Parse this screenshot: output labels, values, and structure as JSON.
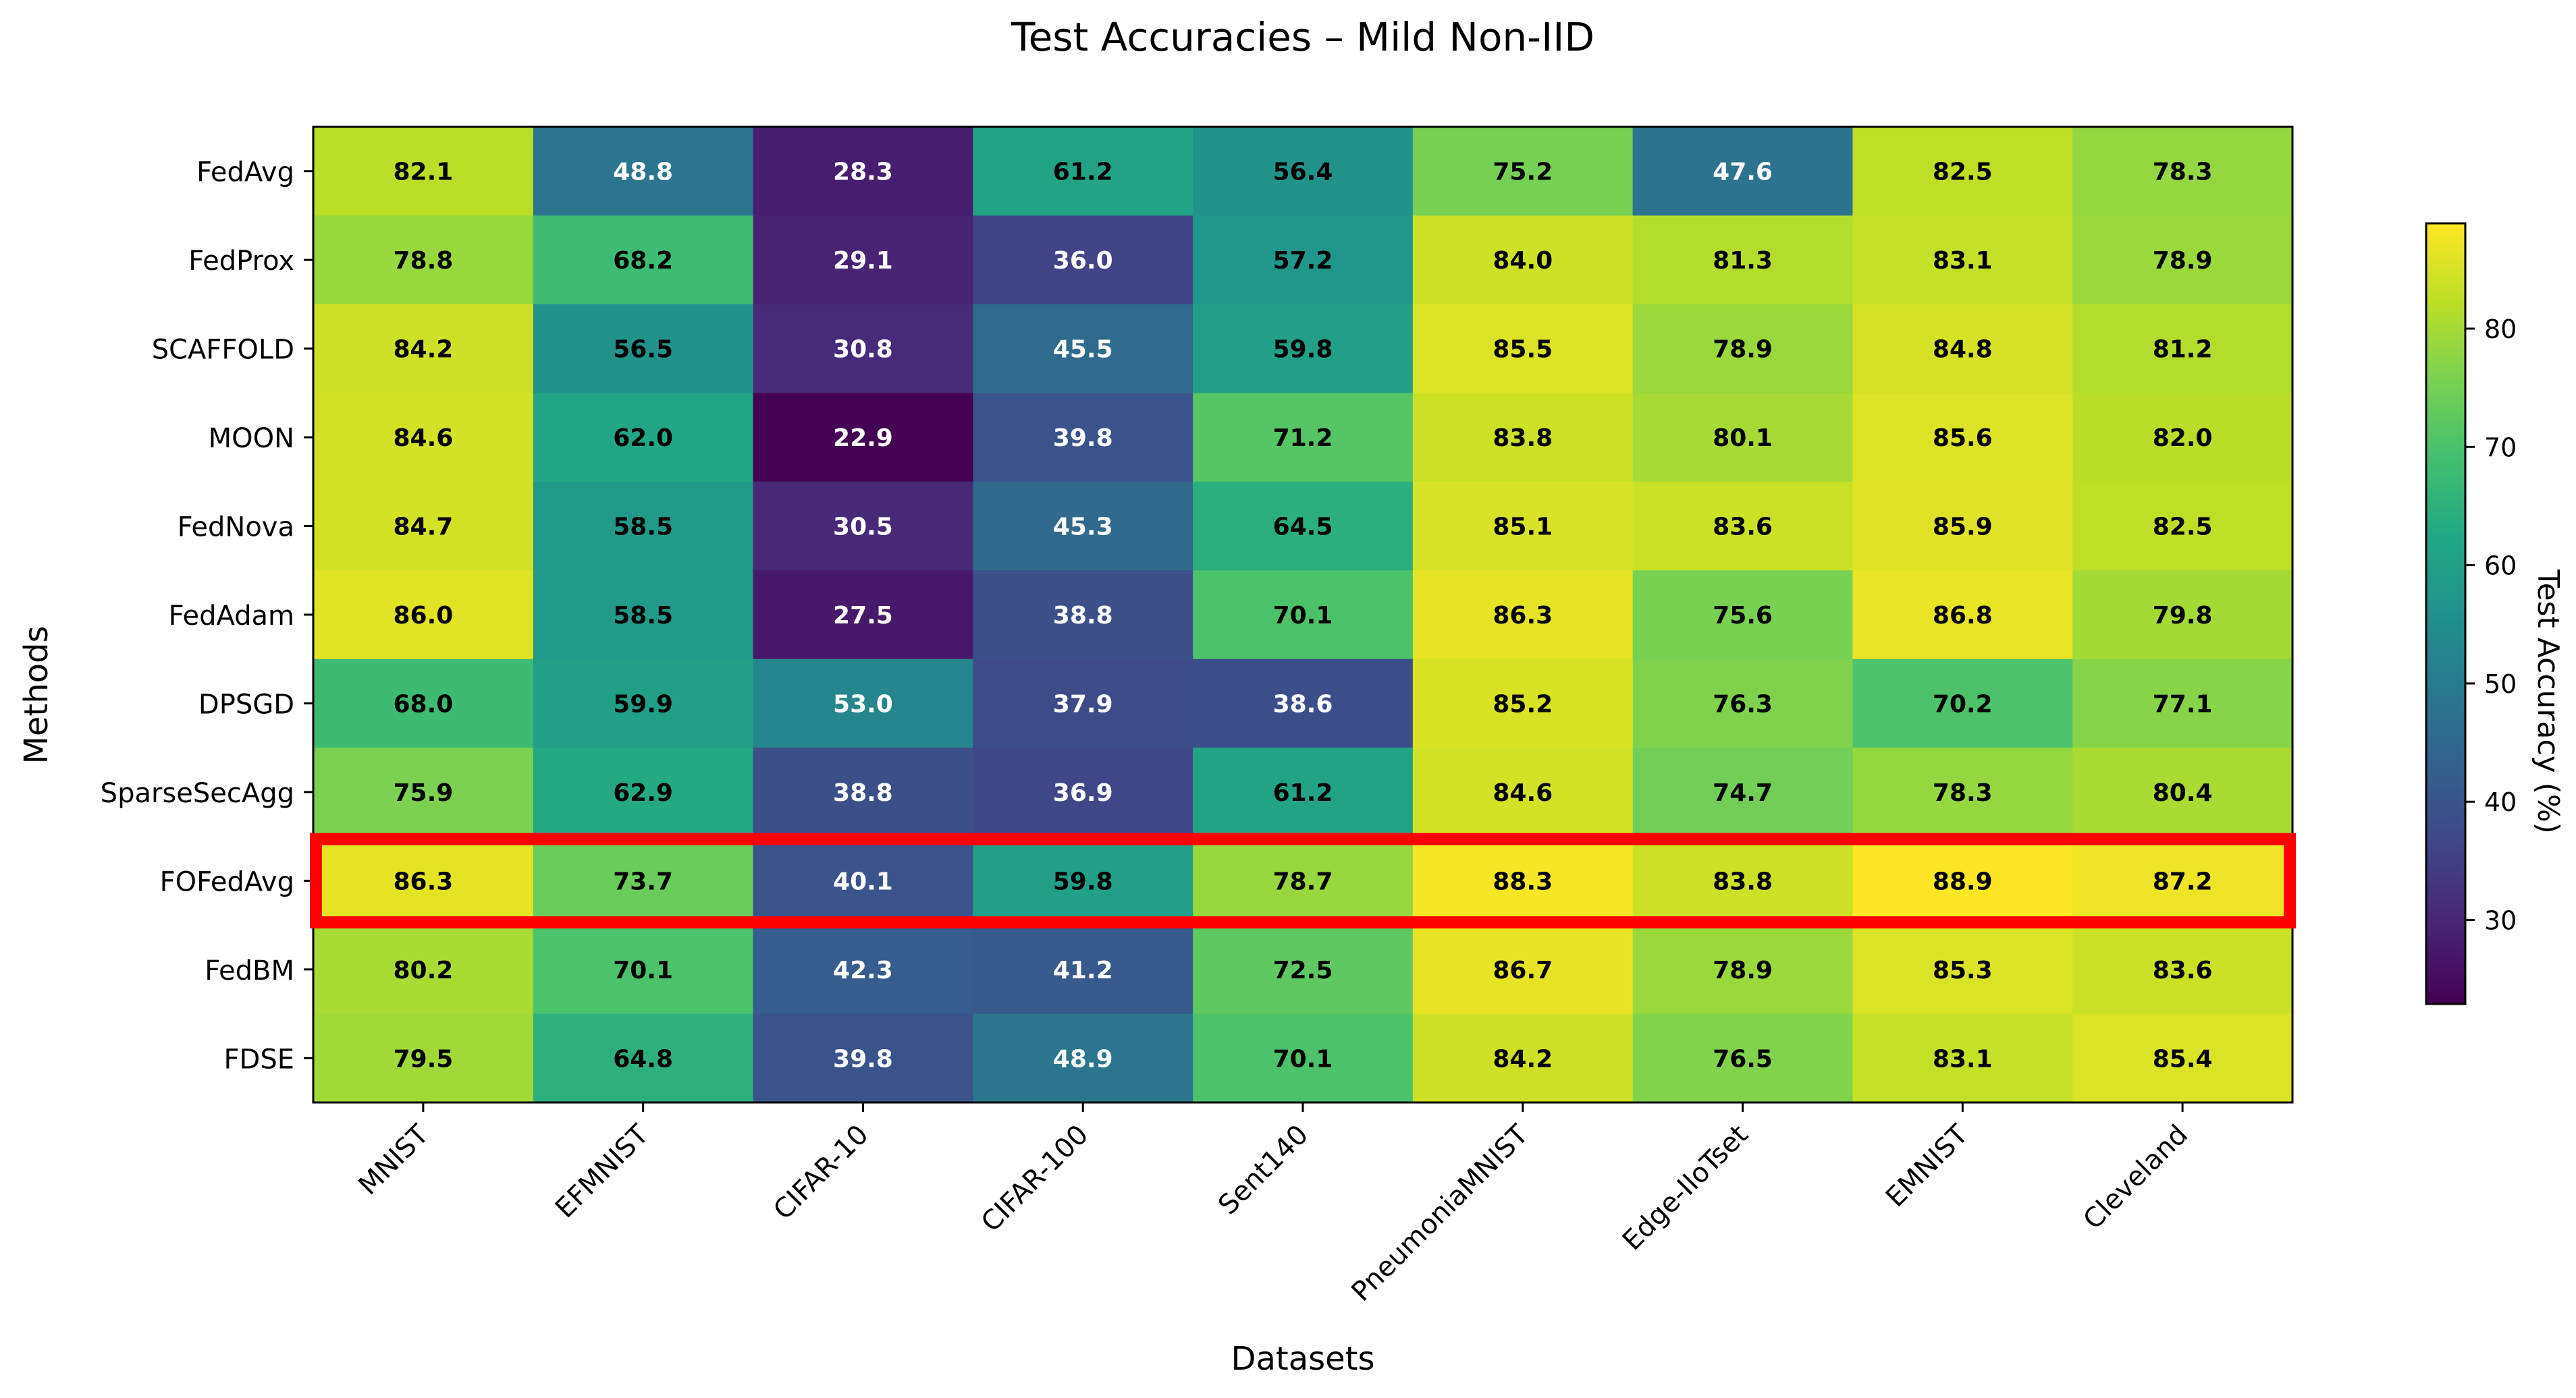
{
  "chart_data": {
    "type": "heatmap",
    "title": "Test Accuracies – Mild Non-IID",
    "xlabel": "Datasets",
    "ylabel": "Methods",
    "colorbar_label": "Test Accuracy (%)",
    "colorbar_ticks": [
      30,
      40,
      50,
      60,
      70,
      80
    ],
    "colorbar_range": [
      22.9,
      88.9
    ],
    "colormap": "viridis",
    "highlight_row": "FOFedAvg",
    "highlight_color": "#ff0000",
    "x_categories": [
      "MNIST",
      "EFMNIST",
      "CIFAR-10",
      "CIFAR-100",
      "Sent140",
      "PneumoniaMNIST",
      "Edge-IIoTset",
      "EMNIST",
      "Cleveland"
    ],
    "y_categories": [
      "FedAvg",
      "FedProx",
      "SCAFFOLD",
      "MOON",
      "FedNova",
      "FedAdam",
      "DPSGD",
      "SparseSecAgg",
      "FOFedAvg",
      "FedBM",
      "FDSE"
    ],
    "values": [
      [
        82.1,
        48.8,
        28.3,
        61.2,
        56.4,
        75.2,
        47.6,
        82.5,
        78.3
      ],
      [
        78.8,
        68.2,
        29.1,
        36.0,
        57.2,
        84.0,
        81.3,
        83.1,
        78.9
      ],
      [
        84.2,
        56.5,
        30.8,
        45.5,
        59.8,
        85.5,
        78.9,
        84.8,
        81.2
      ],
      [
        84.6,
        62.0,
        22.9,
        39.8,
        71.2,
        83.8,
        80.1,
        85.6,
        82.0
      ],
      [
        84.7,
        58.5,
        30.5,
        45.3,
        64.5,
        85.1,
        83.6,
        85.9,
        82.5
      ],
      [
        86.0,
        58.5,
        27.5,
        38.8,
        70.1,
        86.3,
        75.6,
        86.8,
        79.8
      ],
      [
        68.0,
        59.9,
        53.0,
        37.9,
        38.6,
        85.2,
        76.3,
        70.2,
        77.1
      ],
      [
        75.9,
        62.9,
        38.8,
        36.9,
        61.2,
        84.6,
        74.7,
        78.3,
        80.4
      ],
      [
        86.3,
        73.7,
        40.1,
        59.8,
        78.7,
        88.3,
        83.8,
        88.9,
        87.2
      ],
      [
        80.2,
        70.1,
        42.3,
        41.2,
        72.5,
        86.7,
        78.9,
        85.3,
        83.6
      ],
      [
        79.5,
        64.8,
        39.8,
        48.9,
        70.1,
        84.2,
        76.5,
        83.1,
        85.4
      ]
    ]
  }
}
